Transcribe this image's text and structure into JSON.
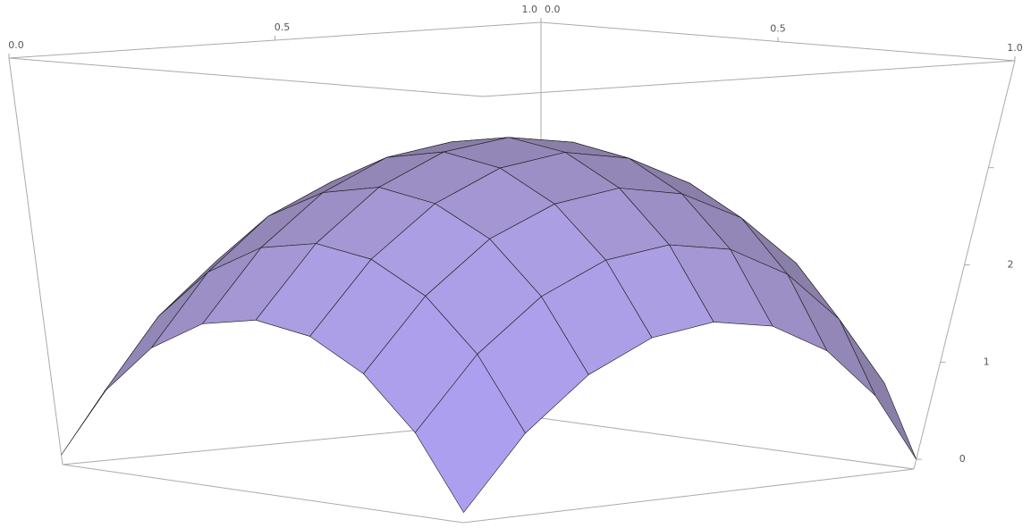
{
  "chart_data": {
    "type": "surface",
    "x": [
      0,
      0.125,
      0.25,
      0.375,
      0.5,
      0.625,
      0.75,
      0.875,
      1
    ],
    "y": [
      0,
      0.125,
      0.25,
      0.375,
      0.5,
      0.625,
      0.75,
      0.875,
      1
    ],
    "z": [
      [
        0,
        0.72,
        1.24,
        1.55,
        1.65,
        1.55,
        1.24,
        0.72,
        0
      ],
      [
        0.72,
        1.44,
        1.96,
        2.27,
        2.37,
        2.27,
        1.96,
        1.44,
        0.72
      ],
      [
        1.24,
        1.96,
        2.48,
        2.78,
        2.89,
        2.78,
        2.48,
        1.96,
        1.24
      ],
      [
        1.55,
        2.27,
        2.78,
        3.09,
        3.2,
        3.09,
        2.78,
        2.27,
        1.55
      ],
      [
        1.65,
        2.37,
        2.89,
        3.2,
        3.3,
        3.2,
        2.89,
        2.37,
        1.65
      ],
      [
        1.55,
        2.27,
        2.78,
        3.09,
        3.2,
        3.09,
        2.78,
        2.27,
        1.55
      ],
      [
        1.24,
        1.96,
        2.48,
        2.78,
        2.89,
        2.78,
        2.48,
        1.96,
        1.24
      ],
      [
        0.72,
        1.44,
        1.96,
        2.27,
        2.37,
        2.27,
        1.96,
        1.44,
        0.72
      ],
      [
        0,
        0.72,
        1.24,
        1.55,
        1.65,
        1.55,
        1.24,
        0.72,
        0
      ]
    ],
    "xlim": [
      0,
      1
    ],
    "ylim": [
      0,
      1
    ],
    "zlim": [
      -0.1,
      4.1
    ],
    "xticks": [
      {
        "value": 0,
        "label": "0.0"
      },
      {
        "value": 0.5,
        "label": "0.5"
      },
      {
        "value": 1,
        "label": "1.0"
      }
    ],
    "yticks": [
      {
        "value": 0,
        "label": "0.0"
      },
      {
        "value": 0.5,
        "label": "0.5"
      },
      {
        "value": 1,
        "label": "1.0"
      }
    ],
    "zticks": [
      0,
      1,
      2,
      3
    ],
    "color": "#8a7fa8"
  }
}
